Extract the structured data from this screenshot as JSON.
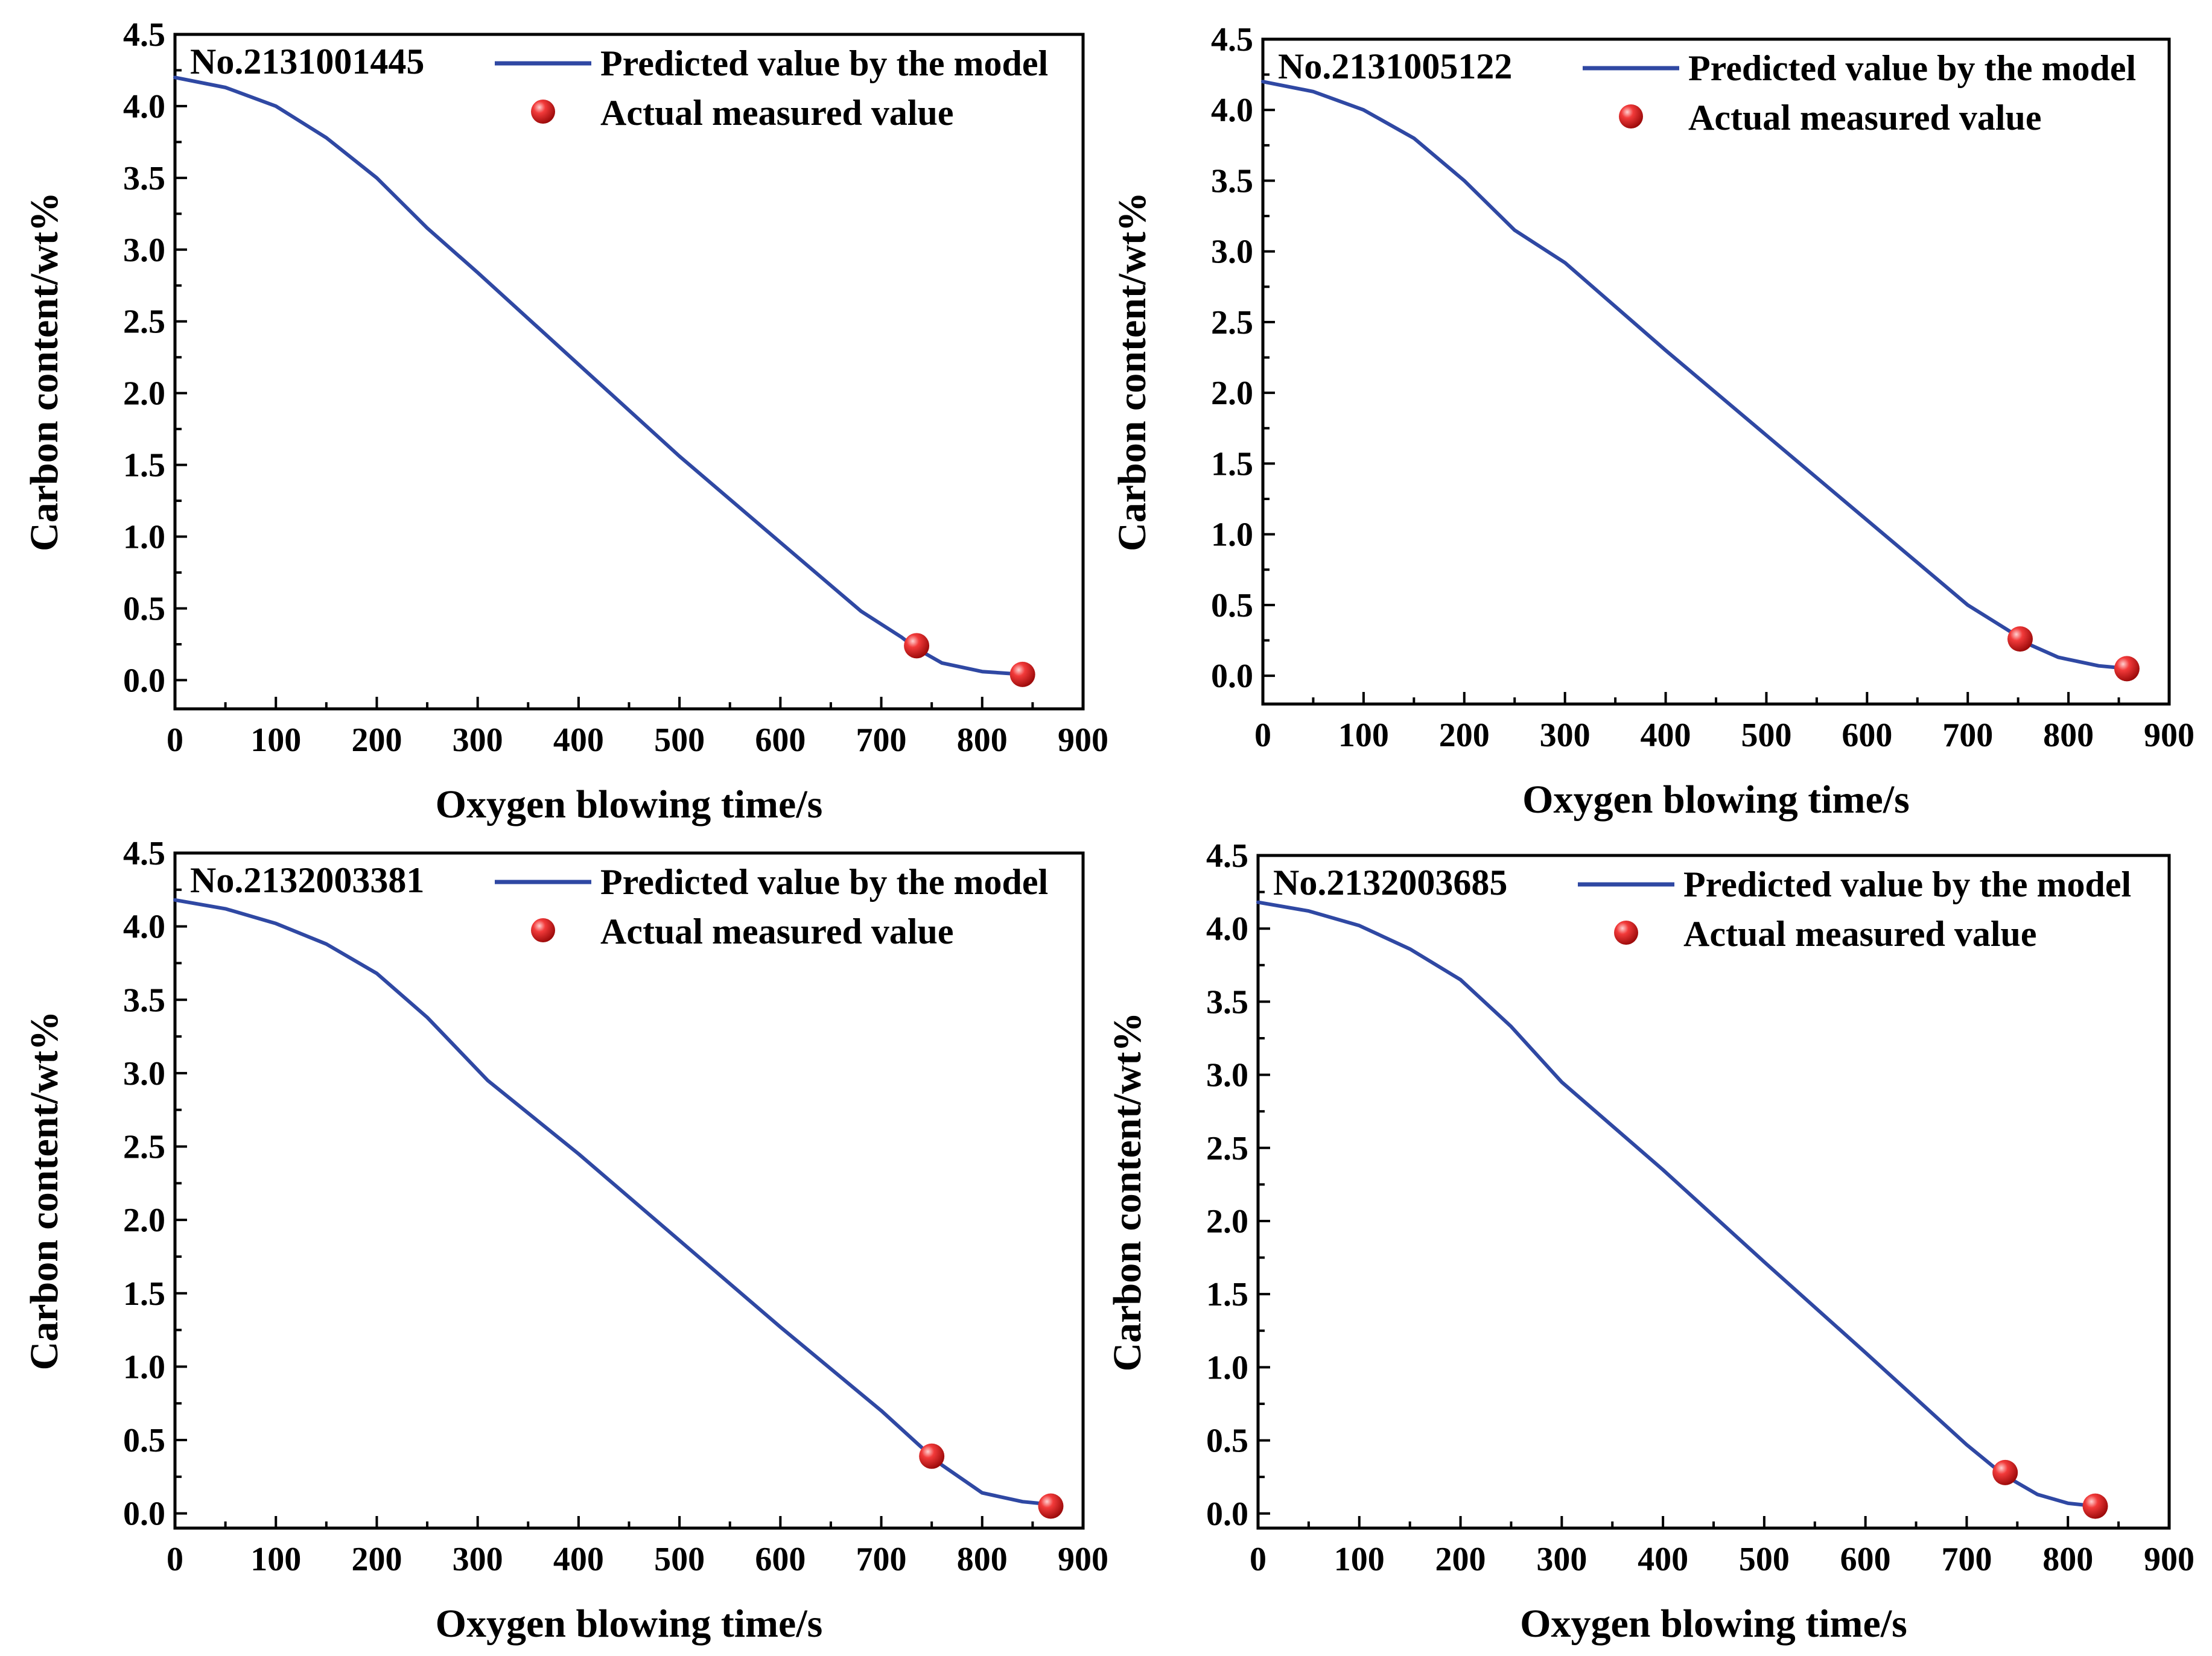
{
  "figure": {
    "colors": {
      "line": "#2f48a3",
      "marker": "#e0191c",
      "axes": "#000000"
    }
  },
  "chart_data": [
    {
      "type": "line",
      "sample_label": "No.2131001445",
      "xlabel": "Oxygen blowing time/s",
      "ylabel": "Carbon content/wt%",
      "xlim": [
        0,
        900
      ],
      "ylim": [
        -0.2,
        4.5
      ],
      "xticks": [
        "0",
        "100",
        "200",
        "300",
        "400",
        "500",
        "600",
        "700",
        "800",
        "900"
      ],
      "yticks": [
        "0.0",
        "0.5",
        "1.0",
        "1.5",
        "2.0",
        "2.5",
        "3.0",
        "3.5",
        "4.0",
        "4.5"
      ],
      "legend": {
        "placement": "top-right",
        "entries": [
          "Predicted value by the model",
          "Actual measured value"
        ]
      },
      "series": [
        {
          "name": "Predicted value by the model",
          "kind": "line",
          "x": [
            0,
            50,
            100,
            150,
            200,
            250,
            300,
            400,
            500,
            600,
            680,
            720,
            735,
            760,
            800,
            840
          ],
          "y": [
            4.2,
            4.13,
            4.0,
            3.78,
            3.5,
            3.15,
            2.84,
            2.2,
            1.56,
            0.96,
            0.48,
            0.3,
            0.22,
            0.12,
            0.06,
            0.04
          ]
        },
        {
          "name": "Actual measured value",
          "kind": "scatter",
          "x": [
            735,
            840
          ],
          "y": [
            0.24,
            0.04
          ]
        }
      ]
    },
    {
      "type": "line",
      "sample_label": "No.2131005122",
      "xlabel": "Oxygen blowing time/s",
      "ylabel": "Carbon content/wt%",
      "xlim": [
        0,
        900
      ],
      "ylim": [
        -0.2,
        4.5
      ],
      "xticks": [
        "0",
        "100",
        "200",
        "300",
        "400",
        "500",
        "600",
        "700",
        "800",
        "900"
      ],
      "yticks": [
        "0.0",
        "0.5",
        "1.0",
        "1.5",
        "2.0",
        "2.5",
        "3.0",
        "3.5",
        "4.0",
        "4.5"
      ],
      "legend": {
        "placement": "top-right",
        "entries": [
          "Predicted value by the model",
          "Actual measured value"
        ]
      },
      "series": [
        {
          "name": "Predicted value by the model",
          "kind": "line",
          "x": [
            0,
            50,
            100,
            150,
            200,
            250,
            300,
            400,
            500,
            600,
            700,
            745,
            755,
            790,
            830,
            860
          ],
          "y": [
            4.2,
            4.13,
            4.0,
            3.8,
            3.5,
            3.15,
            2.92,
            2.3,
            1.7,
            1.1,
            0.5,
            0.3,
            0.24,
            0.13,
            0.07,
            0.05
          ]
        },
        {
          "name": "Actual measured value",
          "kind": "scatter",
          "x": [
            752,
            858
          ],
          "y": [
            0.26,
            0.05
          ]
        }
      ]
    },
    {
      "type": "line",
      "sample_label": "No.2132003381",
      "xlabel": "Oxygen blowing time/s",
      "ylabel": "Carbon content/wt%",
      "xlim": [
        0,
        900
      ],
      "ylim": [
        -0.1,
        4.5
      ],
      "xticks": [
        "0",
        "100",
        "200",
        "300",
        "400",
        "500",
        "600",
        "700",
        "800",
        "900"
      ],
      "yticks": [
        "0.0",
        "0.5",
        "1.0",
        "1.5",
        "2.0",
        "2.5",
        "3.0",
        "3.5",
        "4.0",
        "4.5"
      ],
      "legend": {
        "placement": "top-right",
        "entries": [
          "Predicted value by the model",
          "Actual measured value"
        ]
      },
      "series": [
        {
          "name": "Predicted value by the model",
          "kind": "line",
          "x": [
            0,
            50,
            100,
            150,
            200,
            250,
            310,
            400,
            500,
            600,
            700,
            740,
            760,
            800,
            840,
            870
          ],
          "y": [
            4.18,
            4.12,
            4.02,
            3.88,
            3.68,
            3.38,
            2.95,
            2.45,
            1.86,
            1.27,
            0.7,
            0.45,
            0.33,
            0.14,
            0.08,
            0.06
          ]
        },
        {
          "name": "Actual measured value",
          "kind": "scatter",
          "x": [
            750,
            868
          ],
          "y": [
            0.39,
            0.05
          ]
        }
      ]
    },
    {
      "type": "line",
      "sample_label": "No.2132003685",
      "xlabel": "Oxygen blowing time/s",
      "ylabel": "Carbon content/wt%",
      "xlim": [
        0,
        900
      ],
      "ylim": [
        -0.1,
        4.5
      ],
      "xticks": [
        "0",
        "100",
        "200",
        "300",
        "400",
        "500",
        "600",
        "700",
        "800",
        "900"
      ],
      "yticks": [
        "0.0",
        "0.5",
        "1.0",
        "1.5",
        "2.0",
        "2.5",
        "3.0",
        "3.5",
        "4.0",
        "4.5"
      ],
      "legend": {
        "placement": "top-right",
        "entries": [
          "Predicted value by the model",
          "Actual measured value"
        ]
      },
      "series": [
        {
          "name": "Predicted value by the model",
          "kind": "line",
          "x": [
            0,
            50,
            100,
            150,
            200,
            250,
            300,
            400,
            500,
            600,
            700,
            730,
            745,
            770,
            800,
            827
          ],
          "y": [
            4.18,
            4.12,
            4.02,
            3.86,
            3.65,
            3.33,
            2.95,
            2.35,
            1.72,
            1.1,
            0.47,
            0.3,
            0.23,
            0.13,
            0.07,
            0.05
          ]
        },
        {
          "name": "Actual measured value",
          "kind": "scatter",
          "x": [
            738,
            827
          ],
          "y": [
            0.28,
            0.05
          ]
        }
      ]
    }
  ]
}
